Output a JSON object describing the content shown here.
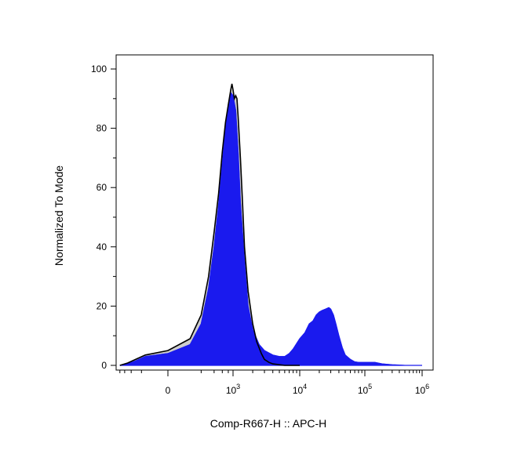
{
  "chart_data": {
    "type": "area",
    "title": "",
    "xlabel": "Comp-R667-H :: APC-H",
    "ylabel": "Normalized To Mode",
    "x_scale": "biexponential",
    "x_ticks": [
      {
        "label": "0",
        "value": 0
      },
      {
        "label": "10",
        "exp": "3",
        "value": 1000
      },
      {
        "label": "10",
        "exp": "4",
        "value": 10000
      },
      {
        "label": "10",
        "exp": "5",
        "value": 100000
      },
      {
        "label": "10",
        "exp": "6",
        "value": 1000000
      }
    ],
    "y_ticks": [
      0,
      20,
      40,
      60,
      80,
      100
    ],
    "ylim": [
      0,
      100
    ],
    "grid": false,
    "series": [
      {
        "color": "#1a1aee",
        "fill": "#1a1aee",
        "style": "filled",
        "x": [
          -800,
          -500,
          -300,
          -150,
          0,
          100,
          200,
          300,
          400,
          500,
          600,
          700,
          800,
          900,
          1000,
          1100,
          1200,
          1300,
          1500,
          1700,
          2000,
          2500,
          3000,
          4000,
          5000,
          6000,
          7000,
          8000,
          10000,
          12000,
          14000,
          16000,
          18000,
          20000,
          22000,
          25000,
          28000,
          30000,
          33000,
          36000,
          40000,
          45000,
          50000,
          60000,
          70000,
          80000,
          100000,
          120000,
          150000,
          200000,
          300000,
          500000,
          1000000
        ],
        "y": [
          0,
          0.5,
          1.5,
          3,
          4,
          7,
          14,
          26,
          40,
          54,
          68,
          80,
          88,
          92,
          91,
          86,
          72,
          55,
          35,
          20,
          12,
          7,
          5,
          3.5,
          3,
          3,
          4,
          5.5,
          9,
          11,
          14,
          15,
          17,
          18,
          18.5,
          19,
          19.5,
          19,
          17,
          14,
          10,
          6,
          3.5,
          2,
          1.2,
          1,
          1,
          1,
          1,
          0.5,
          0.2,
          0,
          0
        ]
      },
      {
        "color": "#000000",
        "fill": "#c8c8c8",
        "style": "outline",
        "x": [
          -800,
          -500,
          -300,
          -150,
          0,
          100,
          200,
          300,
          400,
          500,
          600,
          700,
          800,
          900,
          950,
          1000,
          1050,
          1100,
          1150,
          1200,
          1300,
          1400,
          1500,
          1700,
          2000,
          2300,
          2700,
          3000,
          3500,
          4000,
          5000,
          6000,
          8000,
          10000
        ],
        "y": [
          0,
          0.8,
          2,
          3.5,
          5,
          9,
          17,
          30,
          45,
          58,
          72,
          82,
          88,
          93,
          95,
          93,
          90,
          91,
          90,
          84,
          70,
          55,
          40,
          25,
          14,
          8,
          4,
          2,
          1,
          0.5,
          0.2,
          0,
          0,
          0
        ]
      }
    ]
  }
}
